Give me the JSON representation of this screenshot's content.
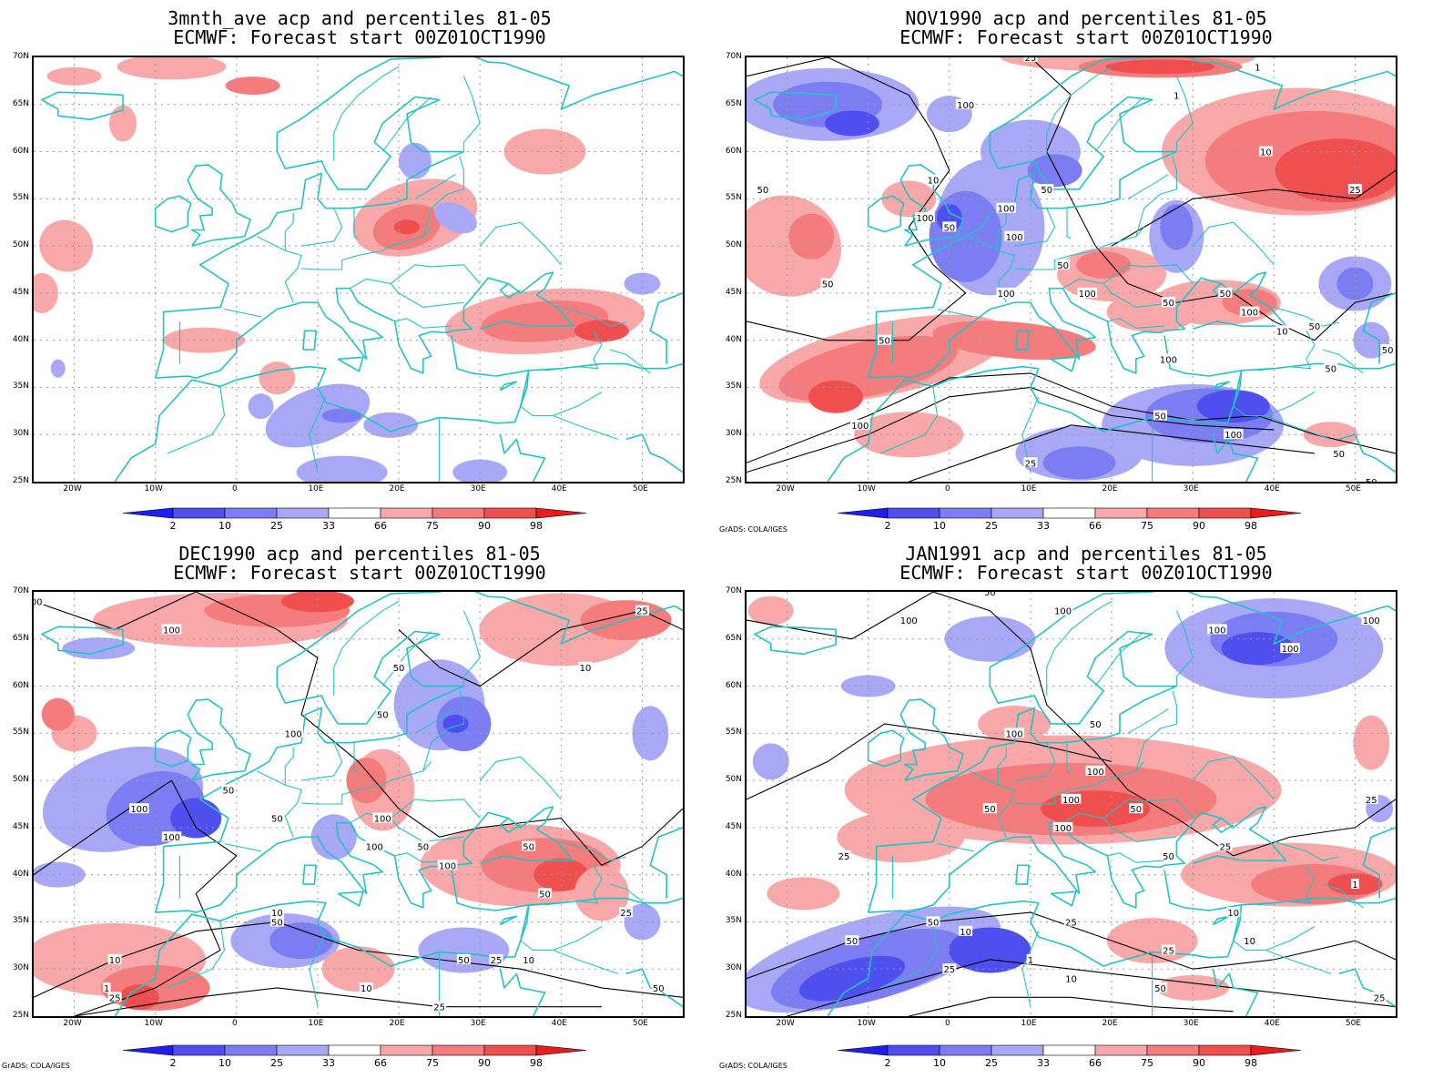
{
  "colors": {
    "coast": "#20c4c4",
    "contour": "#000000",
    "grid": "#9a9a9a",
    "bins": [
      "#1e1ef0",
      "#4f4ff0",
      "#7c7cf3",
      "#a8a8f6",
      "#ffffff",
      "#f8a8a8",
      "#f47c7c",
      "#f04f4f",
      "#e81e1e"
    ]
  },
  "axes": {
    "lat_labels": [
      "70N",
      "65N",
      "60N",
      "55N",
      "50N",
      "45N",
      "40N",
      "35N",
      "30N",
      "25N"
    ],
    "lon_labels": [
      "20W",
      "10W",
      "0",
      "10E",
      "20E",
      "30E",
      "40E",
      "50E"
    ]
  },
  "colorbar_labels": [
    "2",
    "10",
    "25",
    "33",
    "66",
    "75",
    "90",
    "98"
  ],
  "credit": "GrADS: COLA/IGES",
  "panels": [
    {
      "title1": "3mnth_ave acp and percentiles 81-05",
      "title2": "ECMWF: Forecast start 00Z01OCT1990",
      "credit": ""
    },
    {
      "title1": "NOV1990 acp and percentiles 81-05",
      "title2": "ECMWF: Forecast start 00Z01OCT1990",
      "credit": "GrADS: COLA/IGES"
    },
    {
      "title1": "DEC1990 acp and percentiles 81-05",
      "title2": "ECMWF: Forecast start 00Z01OCT1990",
      "credit": "GrADS: COLA/IGES"
    },
    {
      "title1": "JAN1991 acp and percentiles 81-05",
      "title2": "ECMWF: Forecast start 00Z01OCT1990",
      "credit": "GrADS: COLA/IGES"
    }
  ],
  "contour_labels": {
    "p1": [
      "100",
      "50",
      "50",
      "50",
      "100",
      "50",
      "100",
      "100",
      "50",
      "100",
      "100",
      "100",
      "50",
      "50",
      "100",
      "50",
      "10",
      "100",
      "50",
      "25",
      "50",
      "25",
      "10",
      "1",
      "1",
      "25",
      "10",
      "50"
    ],
    "p2": [
      "100",
      "100",
      "50",
      "50",
      "100",
      "50",
      "100",
      "100",
      "50",
      "100",
      "100",
      "50",
      "100",
      "50",
      "50",
      "25",
      "10",
      "1",
      "25",
      "10",
      "50",
      "50",
      "25",
      "50",
      "10",
      "25",
      "10",
      "10",
      "25",
      "50"
    ],
    "p3": [
      "100",
      "50",
      "100",
      "50",
      "100",
      "100",
      "100",
      "100",
      "50",
      "100",
      "100",
      "100",
      "50",
      "50",
      "25",
      "10",
      "1",
      "25",
      "50",
      "10",
      "25",
      "25",
      "10",
      "1",
      "50",
      "25",
      "10",
      "50",
      "25",
      "25"
    ]
  }
}
